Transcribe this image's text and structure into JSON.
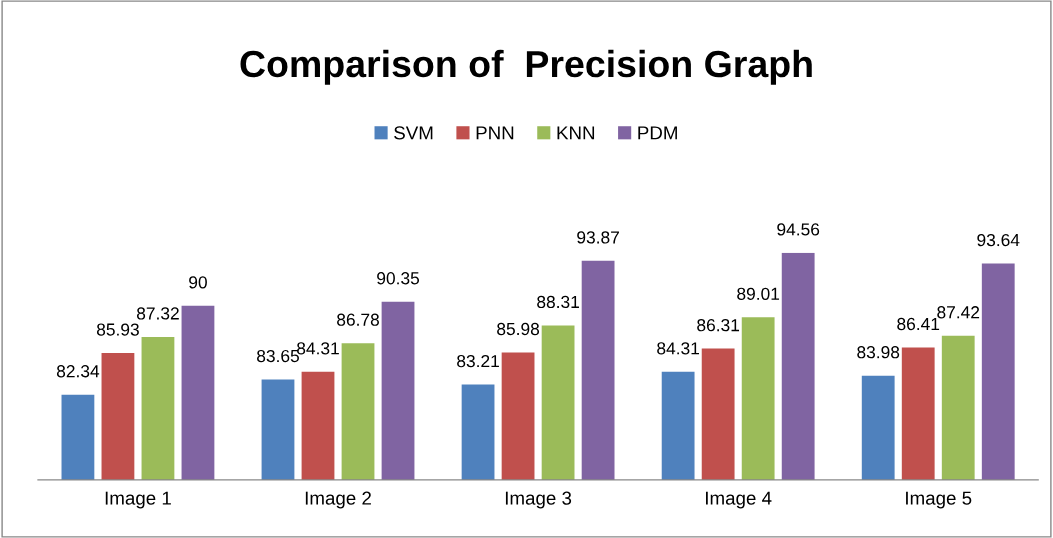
{
  "chart_data": {
    "type": "bar",
    "title": "Comparison of  Precision Graph",
    "categories": [
      "Image 1",
      "Image 2",
      "Image 3",
      "Image 4",
      "Image 5"
    ],
    "series": [
      {
        "name": "SVM",
        "color": "#4f81bd",
        "values": [
          82.34,
          83.65,
          83.21,
          84.31,
          83.98
        ]
      },
      {
        "name": "PNN",
        "color": "#c0504d",
        "values": [
          85.93,
          84.31,
          85.98,
          86.31,
          86.41
        ]
      },
      {
        "name": "KNN",
        "color": "#9bbb59",
        "values": [
          87.32,
          86.78,
          88.31,
          89.01,
          87.42
        ]
      },
      {
        "name": "PDM",
        "color": "#8064a2",
        "values": [
          90,
          90.35,
          93.87,
          94.56,
          93.64
        ]
      }
    ],
    "ylim": [
      75,
      94.56
    ],
    "tick_labels": "x",
    "data_labels": true,
    "legend": "top",
    "grid": false
  }
}
